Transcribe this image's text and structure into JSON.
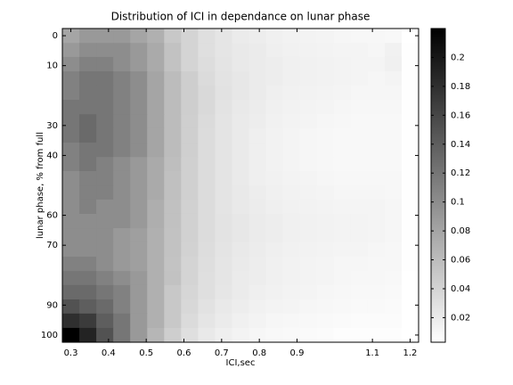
{
  "chart_data": {
    "type": "heatmap",
    "title": "Distribution of ICI in dependance on lunar phase",
    "x_label": "ICI,sec",
    "y_label": "lunar phase, % from full",
    "x": [
      0.3,
      0.345,
      0.39,
      0.435,
      0.48,
      0.525,
      0.57,
      0.615,
      0.66,
      0.705,
      0.75,
      0.795,
      0.84,
      0.885,
      0.93,
      0.975,
      1.02,
      1.065,
      1.11,
      1.155,
      1.2
    ],
    "y": [
      0,
      4.8,
      9.5,
      14.3,
      19,
      23.8,
      28.6,
      33.3,
      38.1,
      42.9,
      47.6,
      52.4,
      57.1,
      61.9,
      66.7,
      71.4,
      76.2,
      81,
      85.7,
      90.5,
      95.2,
      100
    ],
    "z": [
      [
        0.08,
        0.09,
        0.09,
        0.09,
        0.08,
        0.07,
        0.05,
        0.04,
        0.03,
        0.025,
        0.02,
        0.018,
        0.016,
        0.014,
        0.013,
        0.012,
        0.011,
        0.01,
        0.01,
        0.009,
        0.003
      ],
      [
        0.09,
        0.1,
        0.1,
        0.1,
        0.09,
        0.075,
        0.055,
        0.04,
        0.03,
        0.025,
        0.022,
        0.02,
        0.017,
        0.015,
        0.014,
        0.013,
        0.012,
        0.012,
        0.011,
        0.015,
        0.004
      ],
      [
        0.1,
        0.11,
        0.11,
        0.1,
        0.09,
        0.075,
        0.055,
        0.04,
        0.032,
        0.026,
        0.022,
        0.02,
        0.018,
        0.016,
        0.015,
        0.014,
        0.013,
        0.012,
        0.012,
        0.016,
        0.004
      ],
      [
        0.11,
        0.12,
        0.12,
        0.11,
        0.1,
        0.08,
        0.06,
        0.045,
        0.034,
        0.027,
        0.023,
        0.02,
        0.018,
        0.016,
        0.015,
        0.014,
        0.013,
        0.012,
        0.011,
        0.012,
        0.004
      ],
      [
        0.11,
        0.12,
        0.12,
        0.11,
        0.1,
        0.08,
        0.06,
        0.045,
        0.035,
        0.028,
        0.023,
        0.02,
        0.017,
        0.015,
        0.014,
        0.013,
        0.012,
        0.011,
        0.011,
        0.011,
        0.004
      ],
      [
        0.12,
        0.12,
        0.12,
        0.11,
        0.1,
        0.08,
        0.06,
        0.045,
        0.035,
        0.027,
        0.022,
        0.019,
        0.016,
        0.014,
        0.013,
        0.012,
        0.011,
        0.01,
        0.01,
        0.01,
        0.004
      ],
      [
        0.12,
        0.13,
        0.12,
        0.11,
        0.1,
        0.08,
        0.06,
        0.044,
        0.034,
        0.026,
        0.021,
        0.018,
        0.015,
        0.013,
        0.012,
        0.011,
        0.01,
        0.009,
        0.009,
        0.009,
        0.004
      ],
      [
        0.12,
        0.13,
        0.12,
        0.11,
        0.1,
        0.08,
        0.06,
        0.044,
        0.033,
        0.026,
        0.021,
        0.017,
        0.014,
        0.012,
        0.011,
        0.01,
        0.009,
        0.009,
        0.009,
        0.009,
        0.004
      ],
      [
        0.11,
        0.12,
        0.12,
        0.11,
        0.1,
        0.08,
        0.06,
        0.044,
        0.033,
        0.026,
        0.021,
        0.017,
        0.014,
        0.012,
        0.011,
        0.01,
        0.009,
        0.009,
        0.009,
        0.009,
        0.004
      ],
      [
        0.11,
        0.12,
        0.11,
        0.1,
        0.09,
        0.075,
        0.058,
        0.043,
        0.033,
        0.026,
        0.021,
        0.017,
        0.014,
        0.012,
        0.011,
        0.01,
        0.009,
        0.009,
        0.009,
        0.009,
        0.004
      ],
      [
        0.1,
        0.11,
        0.11,
        0.1,
        0.09,
        0.075,
        0.057,
        0.043,
        0.033,
        0.026,
        0.021,
        0.017,
        0.015,
        0.013,
        0.012,
        0.011,
        0.01,
        0.01,
        0.01,
        0.01,
        0.004
      ],
      [
        0.1,
        0.11,
        0.11,
        0.1,
        0.09,
        0.075,
        0.057,
        0.043,
        0.033,
        0.026,
        0.022,
        0.018,
        0.016,
        0.014,
        0.013,
        0.012,
        0.011,
        0.011,
        0.011,
        0.01,
        0.004
      ],
      [
        0.1,
        0.11,
        0.1,
        0.1,
        0.09,
        0.072,
        0.056,
        0.042,
        0.033,
        0.026,
        0.022,
        0.019,
        0.017,
        0.015,
        0.014,
        0.013,
        0.012,
        0.012,
        0.012,
        0.011,
        0.004
      ],
      [
        0.1,
        0.1,
        0.1,
        0.1,
        0.09,
        0.072,
        0.056,
        0.042,
        0.033,
        0.027,
        0.023,
        0.02,
        0.018,
        0.016,
        0.015,
        0.014,
        0.013,
        0.013,
        0.012,
        0.011,
        0.004
      ],
      [
        0.1,
        0.1,
        0.1,
        0.09,
        0.085,
        0.07,
        0.055,
        0.042,
        0.033,
        0.027,
        0.023,
        0.02,
        0.018,
        0.016,
        0.015,
        0.014,
        0.013,
        0.013,
        0.012,
        0.011,
        0.004
      ],
      [
        0.1,
        0.1,
        0.1,
        0.09,
        0.085,
        0.07,
        0.055,
        0.041,
        0.032,
        0.026,
        0.022,
        0.019,
        0.017,
        0.015,
        0.014,
        0.013,
        0.012,
        0.012,
        0.011,
        0.01,
        0.004
      ],
      [
        0.11,
        0.11,
        0.1,
        0.09,
        0.085,
        0.07,
        0.054,
        0.04,
        0.031,
        0.025,
        0.021,
        0.018,
        0.016,
        0.014,
        0.013,
        0.012,
        0.011,
        0.011,
        0.01,
        0.01,
        0.004
      ],
      [
        0.12,
        0.12,
        0.11,
        0.1,
        0.09,
        0.07,
        0.055,
        0.04,
        0.03,
        0.025,
        0.02,
        0.018,
        0.016,
        0.014,
        0.013,
        0.012,
        0.011,
        0.01,
        0.01,
        0.009,
        0.003
      ],
      [
        0.13,
        0.13,
        0.12,
        0.11,
        0.09,
        0.07,
        0.05,
        0.038,
        0.03,
        0.024,
        0.02,
        0.017,
        0.015,
        0.013,
        0.012,
        0.011,
        0.01,
        0.009,
        0.009,
        0.008,
        0.003
      ],
      [
        0.15,
        0.14,
        0.13,
        0.11,
        0.09,
        0.07,
        0.05,
        0.036,
        0.028,
        0.022,
        0.018,
        0.015,
        0.013,
        0.012,
        0.011,
        0.01,
        0.009,
        0.008,
        0.008,
        0.007,
        0.003
      ],
      [
        0.18,
        0.17,
        0.14,
        0.12,
        0.09,
        0.07,
        0.05,
        0.034,
        0.025,
        0.02,
        0.016,
        0.013,
        0.011,
        0.01,
        0.009,
        0.008,
        0.007,
        0.006,
        0.006,
        0.006,
        0.003
      ],
      [
        0.22,
        0.19,
        0.15,
        0.12,
        0.09,
        0.065,
        0.045,
        0.03,
        0.022,
        0.017,
        0.013,
        0.011,
        0.009,
        0.008,
        0.007,
        0.006,
        0.005,
        0.005,
        0.005,
        0.005,
        0.003
      ]
    ],
    "xlim": [
      0.2775,
      1.2225
    ],
    "ylim": [
      -2.4,
      102.4
    ],
    "y_reversed": true,
    "xticks": [
      0.3,
      0.4,
      0.5,
      0.6,
      0.7,
      0.8,
      0.9,
      1.1,
      1.2
    ],
    "yticks": [
      0,
      10,
      30,
      40,
      60,
      70,
      90,
      100
    ],
    "clim": [
      0.003,
      0.22
    ],
    "colorbar_ticks": [
      0.02,
      0.04,
      0.06,
      0.08,
      0.1,
      0.12,
      0.14,
      0.16,
      0.18,
      0.2
    ],
    "colormap": [
      "#ffffff",
      "#000000"
    ]
  }
}
